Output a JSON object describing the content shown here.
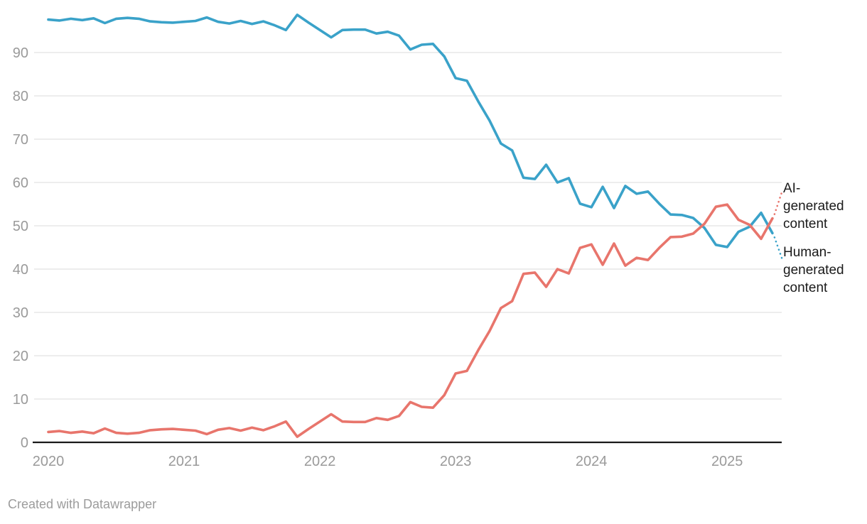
{
  "chart_data": {
    "type": "line",
    "title": "",
    "x_axis": {
      "interval": "monthly",
      "x_start": "2020-01",
      "x_end": "2025-05",
      "tick_labels": [
        "2020",
        "2021",
        "2022",
        "2023",
        "2024",
        "2025"
      ]
    },
    "y_axis": {
      "ticks": [
        0,
        10,
        20,
        30,
        40,
        50,
        60,
        70,
        80,
        90
      ],
      "range": [
        0,
        100
      ],
      "unit": "percent"
    },
    "grid": "horizontal",
    "legend_position": "end-of-line-labels",
    "series": [
      {
        "name": "Human-generated content",
        "color": "#3aa2c9",
        "values": [
          97.6,
          97.4,
          97.8,
          97.5,
          97.9,
          96.8,
          97.8,
          98.0,
          97.8,
          97.2,
          97.0,
          96.9,
          97.1,
          97.3,
          98.1,
          97.1,
          96.7,
          97.3,
          96.6,
          97.2,
          96.3,
          95.2,
          98.7,
          96.9,
          95.2,
          93.5,
          95.2,
          95.3,
          95.3,
          94.4,
          94.8,
          93.9,
          90.7,
          91.8,
          92.0,
          89.1,
          84.1,
          83.5,
          78.7,
          74.3,
          69.0,
          67.4,
          61.1,
          60.8,
          64.1,
          60.0,
          61.0,
          55.1,
          54.3,
          59.0,
          54.1,
          59.2,
          57.4,
          57.9,
          55.1,
          52.6,
          52.5,
          51.8,
          49.5,
          45.6,
          45.1,
          48.6,
          49.8,
          53.0,
          48.3
        ]
      },
      {
        "name": "AI-generated content",
        "color": "#e8756c",
        "values": [
          2.4,
          2.6,
          2.2,
          2.5,
          2.1,
          3.2,
          2.2,
          2.0,
          2.2,
          2.8,
          3.0,
          3.1,
          2.9,
          2.7,
          1.9,
          2.9,
          3.3,
          2.7,
          3.4,
          2.8,
          3.7,
          4.8,
          1.3,
          3.1,
          4.8,
          6.5,
          4.8,
          4.7,
          4.7,
          5.6,
          5.2,
          6.1,
          9.3,
          8.2,
          8.0,
          10.9,
          15.9,
          16.5,
          21.3,
          25.7,
          31.0,
          32.6,
          38.9,
          39.2,
          35.9,
          40.0,
          39.0,
          44.9,
          45.7,
          41.0,
          45.9,
          40.8,
          42.6,
          42.1,
          44.9,
          47.4,
          47.5,
          48.2,
          50.5,
          54.4,
          54.9,
          51.4,
          50.2,
          47.0,
          51.7
        ]
      }
    ],
    "end_labels": [
      {
        "series": "AI-generated content",
        "text_lines": [
          "AI-",
          "generated",
          "content"
        ]
      },
      {
        "series": "Human-generated content",
        "text_lines": [
          "Human-",
          "generated",
          "content"
        ]
      }
    ]
  },
  "colors": {
    "human_line": "#3aa2c9",
    "ai_line": "#e8756c",
    "gridline": "#e2e2e2",
    "baseline": "#1a1a1a",
    "axis_text": "#9a9a9a",
    "label_text": "#1a1a1a",
    "footer_text": "#9c9c9c",
    "background": "#ffffff"
  },
  "footer": {
    "attribution": "Created with Datawrapper"
  }
}
